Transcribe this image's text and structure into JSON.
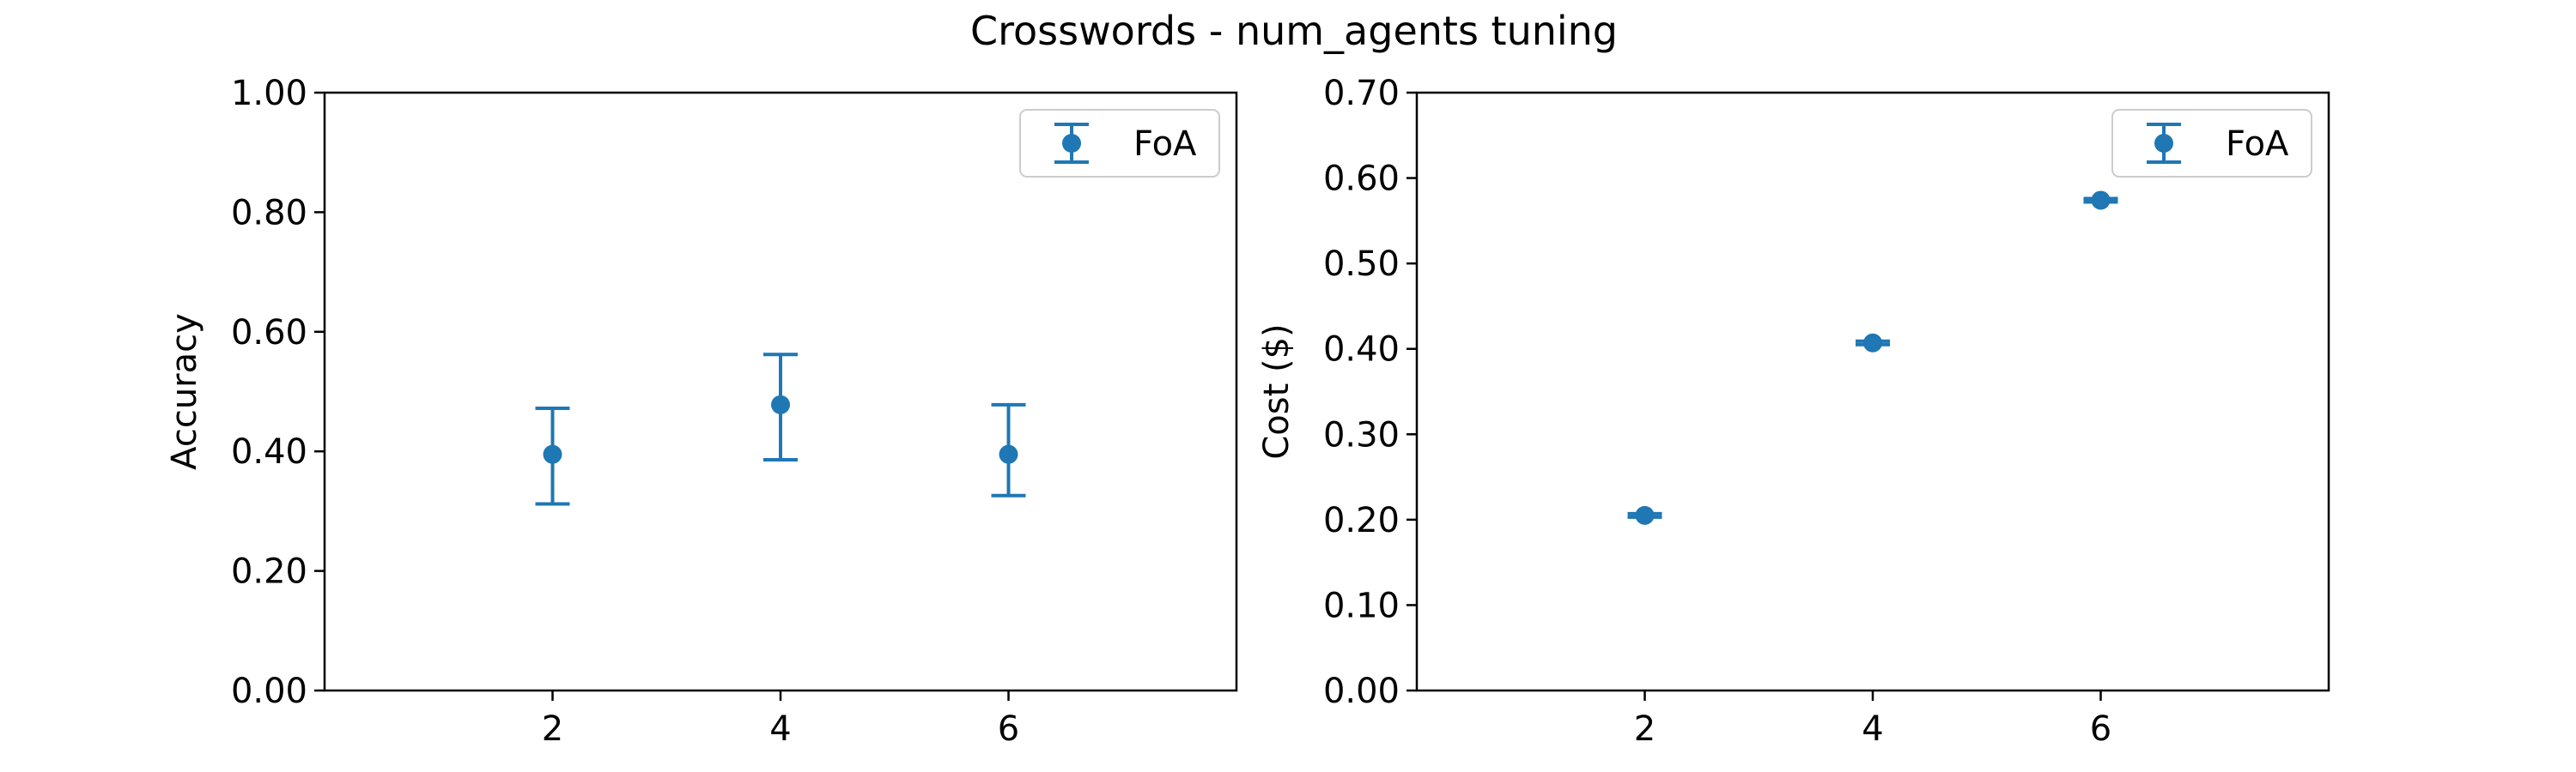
{
  "figure": {
    "title": "Crosswords - num_agents tuning"
  },
  "colors": {
    "series": "#1f77b4",
    "axes": "#000000",
    "legend_border": "#cccccc"
  },
  "chart_data": [
    {
      "type": "scatter",
      "error_bars": true,
      "ylabel": "Accuracy",
      "xlabel": "",
      "xlim": [
        0,
        8
      ],
      "ylim": [
        0.0,
        1.0
      ],
      "x_ticks": [
        2,
        4,
        6
      ],
      "x_tick_labels": [
        "2",
        "4",
        "6"
      ],
      "y_ticks": [
        0.0,
        0.2,
        0.4,
        0.6,
        0.8,
        1.0
      ],
      "y_tick_labels": [
        "0.00",
        "0.20",
        "0.40",
        "0.60",
        "0.80",
        "1.00"
      ],
      "grid": false,
      "legend": {
        "position": "top-right",
        "entries": [
          "FoA"
        ]
      },
      "series": [
        {
          "name": "FoA",
          "x": [
            2,
            4,
            6
          ],
          "y": [
            0.395,
            0.478,
            0.395
          ],
          "yerr_low": [
            0.312,
            0.386,
            0.326
          ],
          "yerr_high": [
            0.472,
            0.562,
            0.478
          ]
        }
      ]
    },
    {
      "type": "scatter",
      "error_bars": true,
      "ylabel": "Cost ($)",
      "xlabel": "",
      "xlim": [
        0,
        8
      ],
      "ylim": [
        0.0,
        0.7
      ],
      "x_ticks": [
        2,
        4,
        6
      ],
      "x_tick_labels": [
        "2",
        "4",
        "6"
      ],
      "y_ticks": [
        0.0,
        0.1,
        0.2,
        0.3,
        0.4,
        0.5,
        0.6,
        0.7
      ],
      "y_tick_labels": [
        "0.00",
        "0.10",
        "0.20",
        "0.30",
        "0.40",
        "0.50",
        "0.60",
        "0.70"
      ],
      "grid": false,
      "legend": {
        "position": "top-right",
        "entries": [
          "FoA"
        ]
      },
      "series": [
        {
          "name": "FoA",
          "x": [
            2,
            4,
            6
          ],
          "y": [
            0.205,
            0.407,
            0.574
          ],
          "yerr_low": [
            0.203,
            0.405,
            0.572
          ],
          "yerr_high": [
            0.207,
            0.409,
            0.576
          ]
        }
      ]
    }
  ]
}
